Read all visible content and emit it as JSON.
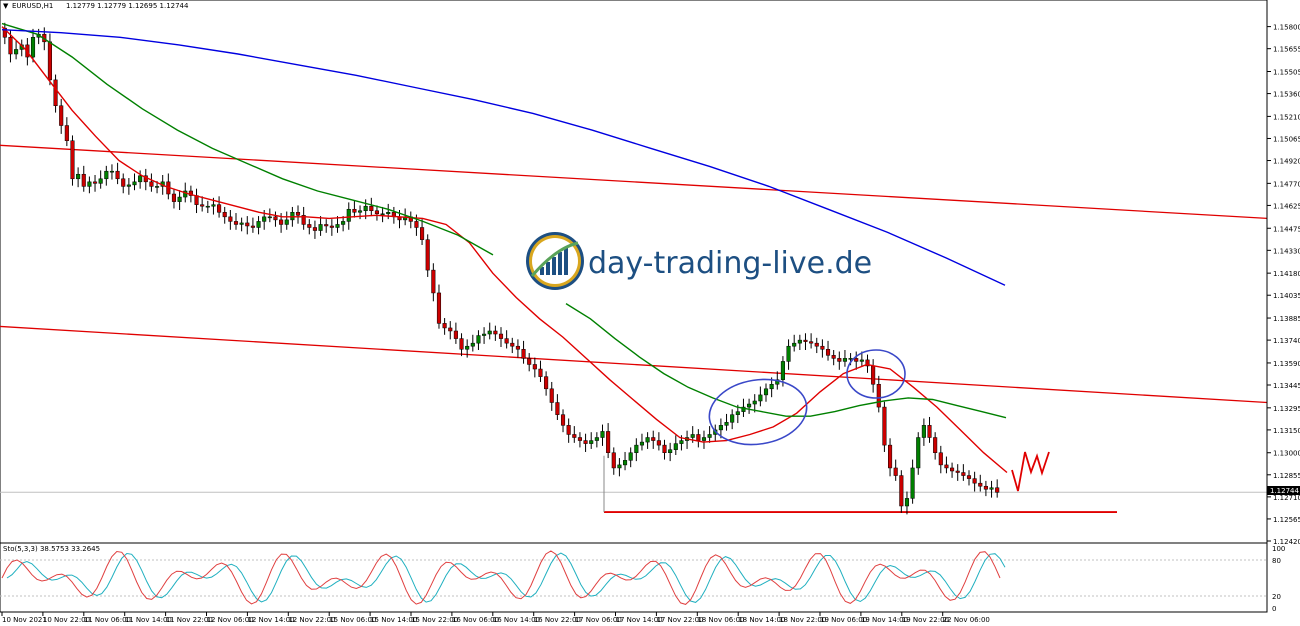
{
  "chart_data": [
    {
      "type": "candlestick",
      "header": {
        "symbol": "EURUSD,H1",
        "ohlc": "1.12779 1.12779 1.12695 1.12744"
      },
      "price_axis": {
        "ticks": [
          "1.15800",
          "1.15655",
          "1.15505",
          "1.15360",
          "1.15210",
          "1.15065",
          "1.14920",
          "1.14770",
          "1.14625",
          "1.14475",
          "1.14330",
          "1.14180",
          "1.14035",
          "1.13885",
          "1.13740",
          "1.13590",
          "1.13445",
          "1.13295",
          "1.13150",
          "1.13000",
          "1.12855",
          "1.12710",
          "1.12565",
          "1.12420"
        ],
        "range": [
          1.1242,
          1.1585
        ],
        "current_price": "1.12744"
      },
      "time_axis": {
        "labels": [
          "10 Nov 2021",
          "10 Nov 22:00",
          "11 Nov 06:00",
          "11 Nov 14:00",
          "11 Nov 22:00",
          "12 Nov 06:00",
          "12 Nov 14:00",
          "12 Nov 22:00",
          "15 Nov 06:00",
          "15 Nov 14:00",
          "15 Nov 22:00",
          "16 Nov 06:00",
          "16 Nov 14:00",
          "16 Nov 22:00",
          "17 Nov 06:00",
          "17 Nov 14:00",
          "17 Nov 22:00",
          "18 Nov 06:00",
          "18 Nov 14:00",
          "18 Nov 22:00",
          "19 Nov 06:00",
          "19 Nov 14:00",
          "19 Nov 22:00",
          "22 Nov 06:00"
        ]
      },
      "close_path": [
        1.1573,
        1.1562,
        1.1565,
        1.1568,
        1.156,
        1.1573,
        1.1575,
        1.157,
        1.1545,
        1.1528,
        1.1515,
        1.1505,
        1.148,
        1.1483,
        1.1475,
        1.1478,
        1.1477,
        1.148,
        1.1485,
        1.1485,
        1.148,
        1.1475,
        1.1476,
        1.1478,
        1.1482,
        1.1478,
        1.1475,
        1.1475,
        1.1478,
        1.147,
        1.1465,
        1.1468,
        1.1472,
        1.1469,
        1.1463,
        1.1462,
        1.1462,
        1.1463,
        1.1458,
        1.1455,
        1.1452,
        1.145,
        1.1451,
        1.1449,
        1.1448,
        1.1452,
        1.1455,
        1.1455,
        1.1453,
        1.145,
        1.1453,
        1.1458,
        1.1456,
        1.145,
        1.1448,
        1.1446,
        1.145,
        1.1449,
        1.1448,
        1.145,
        1.1452,
        1.146,
        1.1458,
        1.1459,
        1.1462,
        1.1459,
        1.1457,
        1.1457,
        1.1458,
        1.1455,
        1.1453,
        1.1455,
        1.1452,
        1.1448,
        1.144,
        1.142,
        1.1405,
        1.1385,
        1.1382,
        1.138,
        1.1375,
        1.1368,
        1.137,
        1.1372,
        1.1377,
        1.1378,
        1.138,
        1.1378,
        1.1375,
        1.1372,
        1.137,
        1.1368,
        1.1362,
        1.1358,
        1.1355,
        1.135,
        1.1342,
        1.1333,
        1.1325,
        1.1318,
        1.1312,
        1.131,
        1.1308,
        1.1306,
        1.1308,
        1.131,
        1.1314,
        1.13,
        1.129,
        1.1292,
        1.1295,
        1.13,
        1.1305,
        1.1307,
        1.131,
        1.1308,
        1.1305,
        1.13,
        1.1302,
        1.1306,
        1.1308,
        1.131,
        1.1312,
        1.1308,
        1.131,
        1.1312,
        1.1315,
        1.1318,
        1.132,
        1.1325,
        1.1327,
        1.133,
        1.1332,
        1.1334,
        1.1338,
        1.1342,
        1.1345,
        1.1348,
        1.136,
        1.137,
        1.1372,
        1.1374,
        1.1373,
        1.1372,
        1.137,
        1.1368,
        1.1364,
        1.1362,
        1.136,
        1.1362,
        1.1362,
        1.136,
        1.1361,
        1.1357,
        1.1345,
        1.133,
        1.1305,
        1.129,
        1.1285,
        1.1265,
        1.127,
        1.129,
        1.131,
        1.1318,
        1.131,
        1.13,
        1.1292,
        1.129,
        1.1288,
        1.1287,
        1.1285,
        1.1283,
        1.128,
        1.1278,
        1.1276,
        1.1277,
        1.1274
      ],
      "moving_averages": [
        {
          "color": "#e00000",
          "values": [
            1.158,
            1.1565,
            1.1545,
            1.1525,
            1.1508,
            1.1492,
            1.1482,
            1.1475,
            1.147,
            1.1466,
            1.1462,
            1.1458,
            1.1455,
            1.1455,
            1.1454,
            1.1455,
            1.1456,
            1.1455,
            1.1454,
            1.145,
            1.1438,
            1.1418,
            1.1402,
            1.1388,
            1.1376,
            1.1362,
            1.1348,
            1.1335,
            1.1322,
            1.131,
            1.1307,
            1.1308,
            1.1312,
            1.1317,
            1.1326,
            1.134,
            1.1352,
            1.1358,
            1.1355,
            1.1343,
            1.133,
            1.1315,
            1.13,
            1.1287
          ]
        },
        {
          "color": "#008000",
          "values": [
            1.1582,
            1.1575,
            1.156,
            1.1542,
            1.1526,
            1.1512,
            1.15,
            1.149,
            1.148,
            1.1472,
            1.1466,
            1.146,
            1.1452,
            1.1443,
            1.143
          ]
        },
        {
          "color": "#008000",
          "values": [
            1.1398,
            1.1388,
            1.1375,
            1.1363,
            1.1352,
            1.1343,
            1.1336,
            1.133,
            1.1327,
            1.1324,
            1.1324,
            1.1327,
            1.1331,
            1.1334,
            1.1336,
            1.1335,
            1.1331,
            1.1327,
            1.1323
          ]
        },
        {
          "color": "#0000e0",
          "values": [
            1.1578,
            1.1576,
            1.1573,
            1.1568,
            1.1562,
            1.1555,
            1.1548,
            1.154,
            1.1532,
            1.1523,
            1.1512,
            1.15,
            1.1488,
            1.1475,
            1.146,
            1.1445,
            1.1428,
            1.141
          ]
        }
      ],
      "trendlines": [
        {
          "color": "#e00000",
          "from": 1.1502,
          "to": 1.1454
        },
        {
          "color": "#e00000",
          "from": 1.1383,
          "to": 1.1333
        }
      ],
      "support_line": {
        "color": "#e00000",
        "price": 1.1261
      },
      "current_price_line": {
        "price": 1.1274
      },
      "highlight_ellipses": [
        "swing-ellipse-left",
        "swing-ellipse-right"
      ],
      "projection_color": "#e00000"
    },
    {
      "type": "oscillator",
      "label": "Sto(5,3,3) 38.5753 33.2645",
      "axis_ticks": [
        "100",
        "80",
        "20",
        "0"
      ],
      "levels": [
        80,
        20
      ],
      "main_color": "#e0a0a0",
      "signal_color": "#20b0c0"
    }
  ],
  "watermark": {
    "text": "day-trading-live.de",
    "colors": {
      "dark": "#1d4f82",
      "accent": "#d9a71f",
      "green": "#5aa35a"
    }
  }
}
